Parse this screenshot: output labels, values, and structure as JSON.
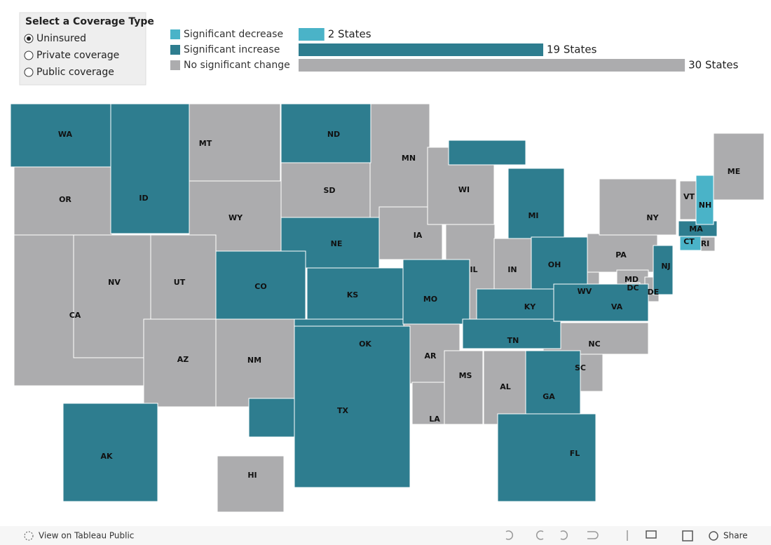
{
  "filter": {
    "title": "Select a Coverage Type",
    "options": [
      "Uninsured",
      "Private coverage",
      "Public coverage"
    ],
    "selected": 0
  },
  "legend": {
    "groups": [
      {
        "label": "Significant decrease",
        "color": "#4ab3c8",
        "count": 2,
        "count_label": "2 States",
        "states": [
          "NH",
          "CT"
        ]
      },
      {
        "label": "Significant increase",
        "color": "#2e7d8f",
        "count": 19,
        "count_label": "19 States",
        "states": [
          "WA",
          "ID",
          "ND",
          "NE",
          "CO",
          "KS",
          "OK",
          "TX",
          "MO",
          "MI",
          "OH",
          "KY",
          "TN",
          "VA",
          "GA",
          "FL",
          "NJ",
          "MA",
          "AK"
        ]
      },
      {
        "label": "No significant change",
        "color": "#acacae",
        "count": 30,
        "count_label": "30 States",
        "states": [
          "OR",
          "CA",
          "NV",
          "MT",
          "WY",
          "UT",
          "AZ",
          "NM",
          "SD",
          "MN",
          "IA",
          "WI",
          "IL",
          "IN",
          "AR",
          "LA",
          "MS",
          "AL",
          "SC",
          "NC",
          "WV",
          "PA",
          "NY",
          "VT",
          "ME",
          "MD",
          "DC",
          "DE",
          "RI",
          "HI"
        ]
      }
    ]
  },
  "footer": {
    "link": "View on Tableau Public",
    "share": "Share"
  }
}
